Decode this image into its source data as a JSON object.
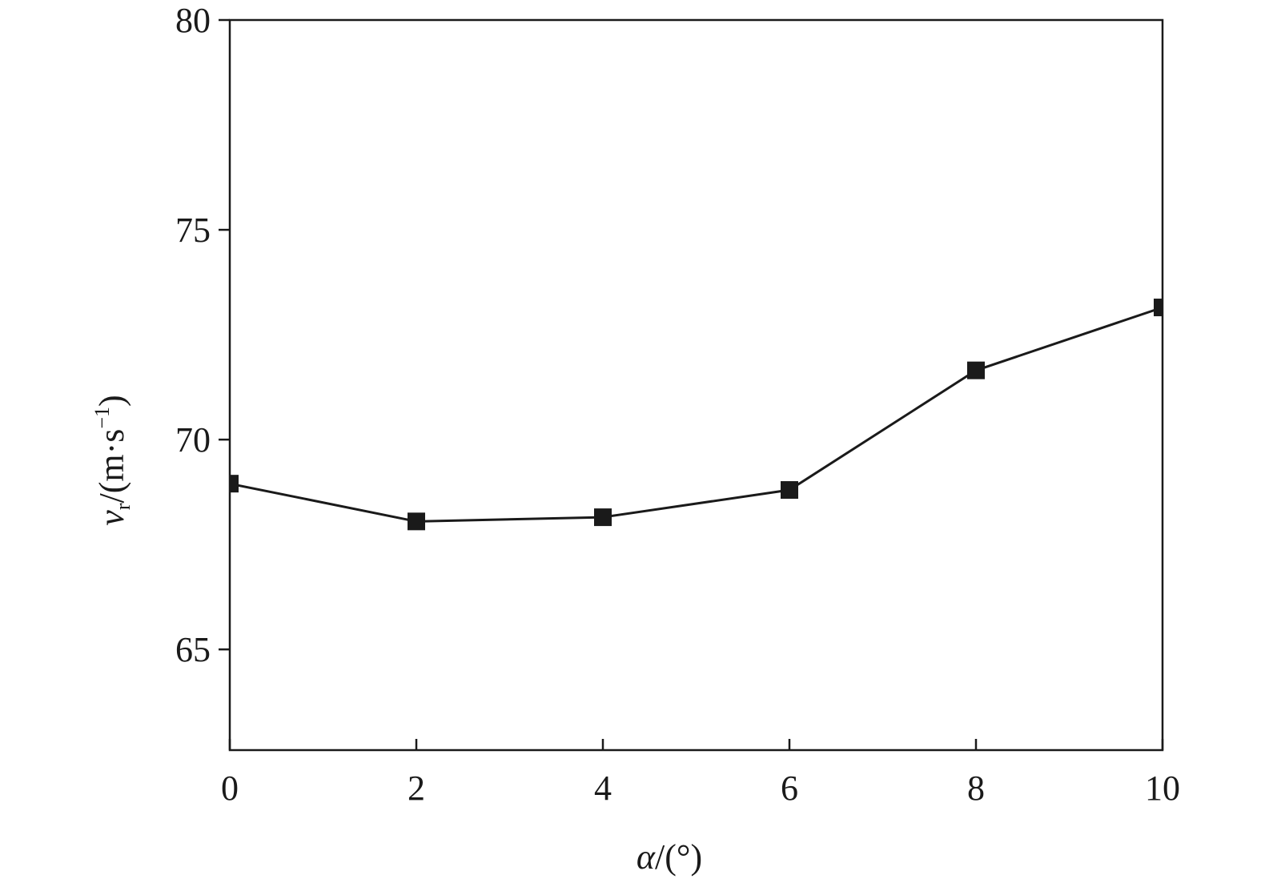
{
  "chart_data": {
    "type": "line",
    "x": [
      0,
      2,
      4,
      6,
      8,
      10
    ],
    "series": [
      {
        "values": [
          68.95,
          68.05,
          68.15,
          68.8,
          71.65,
          73.15
        ]
      }
    ],
    "xlabel": {
      "symbol": "α",
      "unit": "/(°)"
    },
    "ylabel": {
      "symbol": "v",
      "subscript": "r",
      "unit_open": "/(m·s",
      "superscript": "−1",
      "unit_close": ")"
    },
    "xlim": [
      0,
      10
    ],
    "ylim": [
      62.6,
      80
    ],
    "xticks": [
      0,
      2,
      4,
      6,
      8,
      10
    ],
    "yticks": [
      65,
      70,
      75,
      80
    ],
    "xtick_labels": [
      "0",
      "2",
      "4",
      "6",
      "8",
      "10"
    ],
    "ytick_labels": [
      "65",
      "70",
      "75",
      "80"
    ],
    "grid": false,
    "marker": "square",
    "line_color": "#1a1a1a",
    "marker_color": "#1a1a1a"
  }
}
